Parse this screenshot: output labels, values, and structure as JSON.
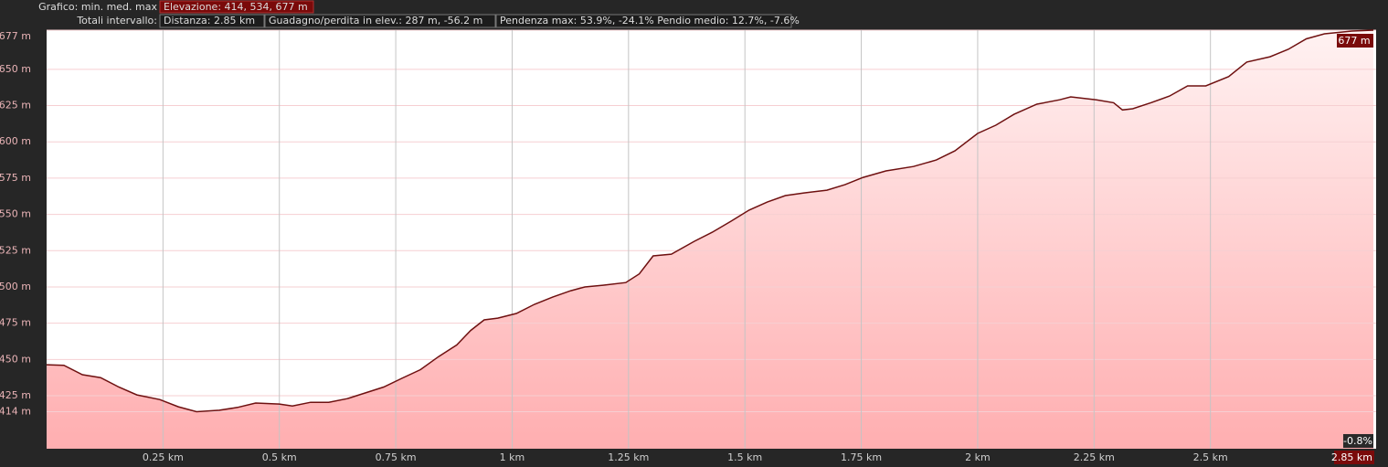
{
  "header": {
    "chart_label": "Grafico: min. med. max",
    "elevation": "Elevazione: 414, 534, 677 m",
    "totals_label": "Totali intervallo:",
    "distance": "Distanza: 2.85 km",
    "gain_loss": "Guadagno/perdita in elev.: 287 m, -56.2 m",
    "slope": "Pendenza max: 53.9%, -24.1% Pendio medio: 12.7%, -7.6%"
  },
  "chart_data": {
    "type": "area",
    "x": [
      0,
      0.037,
      0.077,
      0.116,
      0.155,
      0.194,
      0.243,
      0.283,
      0.322,
      0.371,
      0.41,
      0.449,
      0.5,
      0.528,
      0.567,
      0.606,
      0.646,
      0.685,
      0.724,
      0.763,
      0.803,
      0.842,
      0.881,
      0.911,
      0.94,
      0.969,
      1.009,
      1.048,
      1.087,
      1.126,
      1.156,
      1.195,
      1.244,
      1.273,
      1.303,
      1.342,
      1.391,
      1.43,
      1.47,
      1.509,
      1.548,
      1.587,
      1.627,
      1.676,
      1.715,
      1.754,
      1.803,
      1.862,
      1.911,
      1.951,
      2.0,
      2.039,
      2.078,
      2.127,
      2.176,
      2.2,
      2.255,
      2.292,
      2.311,
      2.333,
      2.372,
      2.412,
      2.451,
      2.49,
      2.539,
      2.578,
      2.628,
      2.667,
      2.706,
      2.745,
      2.804,
      2.85
    ],
    "values": [
      446.4,
      446,
      439.5,
      437.5,
      431,
      425.6,
      422.4,
      417.4,
      414,
      415,
      417,
      420,
      419.3,
      418,
      420.5,
      420.5,
      423,
      427,
      431,
      437,
      443,
      452,
      460,
      470,
      477.3,
      478.5,
      481.7,
      488,
      493,
      497.4,
      500,
      501.2,
      503,
      509,
      521.4,
      522.6,
      531.4,
      537.7,
      545.3,
      553,
      558.5,
      563,
      564.8,
      566.7,
      570.5,
      575.5,
      580,
      583,
      587.5,
      593.8,
      605.8,
      611.5,
      619,
      626,
      629,
      631,
      629,
      627,
      622,
      622.8,
      627,
      631.6,
      638.6,
      638.6,
      645,
      655,
      658.7,
      663.8,
      671,
      674.5,
      676.4,
      677
    ],
    "color": "#6e1010",
    "fill_top": "#fff2f2",
    "fill_bottom": "#ffaeb0",
    "grid": true,
    "xlim": [
      0,
      2.85
    ],
    "ylim": [
      388.5,
      677
    ],
    "xticks": [
      {
        "value": 0.25,
        "label": "0.25 km"
      },
      {
        "value": 0.5,
        "label": "0.5 km"
      },
      {
        "value": 0.75,
        "label": "0.75 km"
      },
      {
        "value": 1,
        "label": "1 km"
      },
      {
        "value": 1.25,
        "label": "1.25 km"
      },
      {
        "value": 1.5,
        "label": "1.5 km"
      },
      {
        "value": 1.75,
        "label": "1.75 km"
      },
      {
        "value": 2,
        "label": "2 km"
      },
      {
        "value": 2.25,
        "label": "2.25 km"
      },
      {
        "value": 2.5,
        "label": "2.5 km"
      },
      {
        "value": 2.85,
        "label": "2.85 km"
      }
    ],
    "yticks": [
      {
        "value": 414,
        "label": "414 m"
      },
      {
        "value": 425,
        "label": "425 m"
      },
      {
        "value": 450,
        "label": "450 m"
      },
      {
        "value": 475,
        "label": "475 m"
      },
      {
        "value": 500,
        "label": "500 m"
      },
      {
        "value": 525,
        "label": "525 m"
      },
      {
        "value": 550,
        "label": "550 m"
      },
      {
        "value": 575,
        "label": "575 m"
      },
      {
        "value": 600,
        "label": "600 m"
      },
      {
        "value": 625,
        "label": "625 m"
      },
      {
        "value": 650,
        "label": "650 m"
      },
      {
        "value": 677,
        "label": "677 m"
      }
    ],
    "annotations": [
      "677 m",
      "-0.8%"
    ]
  }
}
